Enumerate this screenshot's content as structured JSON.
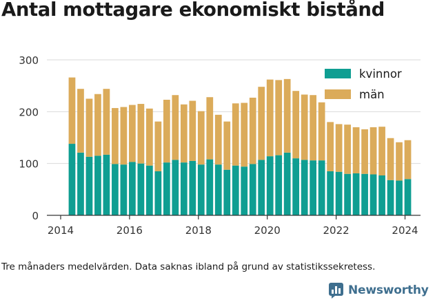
{
  "title": "Antal mottagare ekonomiskt bistånd",
  "footnote": "Tre månaders medelvärden. Data saknas ibland på grund av statistikssekretess.",
  "brand": {
    "name": "Newsworthy",
    "icon": "newsworthy-logo-icon",
    "color": "#3f6f8f"
  },
  "chart_data": {
    "type": "bar",
    "stacked": true,
    "x_start": 2014.33,
    "x_step": 0.25,
    "x": [
      2014.33,
      2014.58,
      2014.83,
      2015.08,
      2015.33,
      2015.58,
      2015.83,
      2016.08,
      2016.33,
      2016.58,
      2016.83,
      2017.08,
      2017.33,
      2017.58,
      2017.83,
      2018.08,
      2018.33,
      2018.58,
      2018.83,
      2019.08,
      2019.33,
      2019.58,
      2019.83,
      2020.08,
      2020.33,
      2020.58,
      2020.83,
      2021.08,
      2021.33,
      2021.58,
      2021.83,
      2022.08,
      2022.33,
      2022.58,
      2022.83,
      2023.08,
      2023.33,
      2023.58,
      2023.83,
      2024.08
    ],
    "series": [
      {
        "name": "kvinnor",
        "color": "#0f9e92",
        "values": [
          138,
          121,
          113,
          115,
          117,
          99,
          98,
          103,
          100,
          96,
          85,
          102,
          107,
          102,
          105,
          98,
          108,
          98,
          88,
          96,
          94,
          99,
          107,
          114,
          116,
          121,
          110,
          107,
          106,
          106,
          85,
          84,
          80,
          81,
          80,
          79,
          77,
          68,
          67,
          70
        ]
      },
      {
        "name": "män",
        "color": "#dbab5a",
        "values": [
          128,
          123,
          112,
          119,
          127,
          108,
          111,
          110,
          115,
          110,
          96,
          121,
          125,
          112,
          116,
          103,
          120,
          96,
          93,
          120,
          123,
          128,
          141,
          148,
          145,
          142,
          130,
          126,
          126,
          112,
          95,
          92,
          95,
          89,
          86,
          91,
          94,
          81,
          74,
          75
        ]
      }
    ],
    "xlim": [
      2013.6,
      2024.45
    ],
    "ylim": [
      0,
      300
    ],
    "yticks": [
      0,
      100,
      200,
      300
    ],
    "xticks": [
      2014,
      2016,
      2018,
      2020,
      2022,
      2024
    ],
    "grid": "horizontal",
    "legend": "top-right",
    "xlabel": "",
    "ylabel": ""
  }
}
